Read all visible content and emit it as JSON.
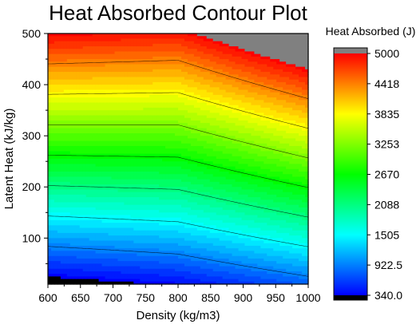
{
  "chart_data": {
    "type": "heatmap",
    "title": "Heat Absorbed Contour Plot",
    "xlabel": "Density (kg/m3)",
    "ylabel": "Latent Heat (kJ/kg)",
    "xlim": [
      600,
      1000
    ],
    "ylim": [
      10,
      500
    ],
    "x_ticks": [
      600,
      650,
      700,
      750,
      800,
      850,
      900,
      950,
      1000
    ],
    "y_ticks": [
      100,
      200,
      300,
      400,
      500
    ],
    "colorbar": {
      "title": "Heat Absorbed (J)",
      "min": 340.0,
      "max": 5000,
      "tick_labels": [
        "340.0",
        "922.5",
        "1505",
        "2088",
        "2670",
        "3253",
        "3835",
        "4418",
        "5000"
      ],
      "over_color": "#808080",
      "under_color": "#000000"
    },
    "contour_levels": [
      922.5,
      1505,
      2088,
      2670,
      3253,
      3835,
      4418
    ],
    "gradient_colors": [
      "#0000ff",
      "#00ffff",
      "#00ff00",
      "#ffff00",
      "#ff0000"
    ],
    "grid": false,
    "field": {
      "x": [
        600,
        800,
        1000
      ],
      "y": [
        10,
        500
      ],
      "z": [
        [
          200,
          380,
          770
        ],
        [
          5000,
          4900,
          5700
        ]
      ]
    }
  }
}
